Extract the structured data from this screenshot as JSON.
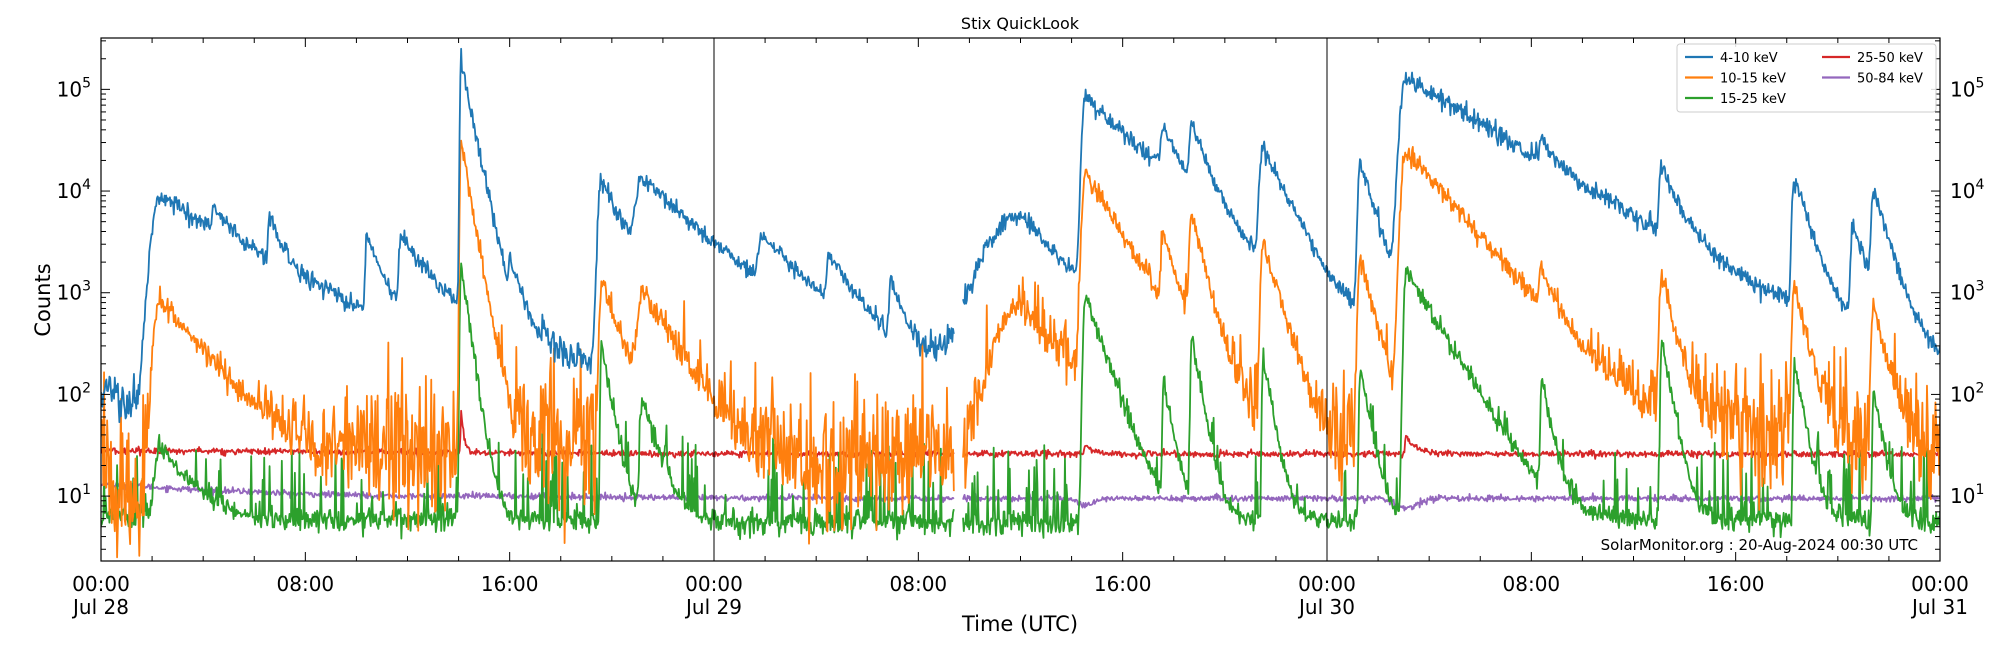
{
  "chart_data": {
    "type": "line",
    "title": "Stix QuickLook",
    "xlabel": "Time (UTC)",
    "ylabel": "Counts",
    "yscale": "log",
    "ylim": [
      2.3,
      320000
    ],
    "xlim_hours": [
      0,
      72
    ],
    "y_ticks": [
      {
        "base": "10",
        "exp": "1",
        "value": 10
      },
      {
        "base": "10",
        "exp": "2",
        "value": 100
      },
      {
        "base": "10",
        "exp": "3",
        "value": 1000
      },
      {
        "base": "10",
        "exp": "4",
        "value": 10000
      },
      {
        "base": "10",
        "exp": "5",
        "value": 100000
      }
    ],
    "x_ticks": [
      {
        "hour": 0,
        "time": "00:00",
        "date": "Jul 28"
      },
      {
        "hour": 8,
        "time": "08:00",
        "date": ""
      },
      {
        "hour": 16,
        "time": "16:00",
        "date": ""
      },
      {
        "hour": 24,
        "time": "00:00",
        "date": "Jul 29"
      },
      {
        "hour": 32,
        "time": "08:00",
        "date": ""
      },
      {
        "hour": 40,
        "time": "16:00",
        "date": ""
      },
      {
        "hour": 48,
        "time": "00:00",
        "date": "Jul 30"
      },
      {
        "hour": 56,
        "time": "08:00",
        "date": ""
      },
      {
        "hour": 64,
        "time": "16:00",
        "date": ""
      },
      {
        "hour": 72,
        "time": "00:00",
        "date": "Jul 31"
      }
    ],
    "day_boundaries_hours": [
      24,
      48
    ],
    "data_gap_hours": [
      33.4,
      33.75
    ],
    "legend_position": "top-right",
    "legend_columns": 2,
    "annotation": "SolarMonitor.org : 20-Aug-2024 00:30 UTC",
    "series": [
      {
        "name": "4-10 keV",
        "color": "#1f77b4",
        "background_points": [
          [
            0,
            130
          ],
          [
            1,
            75
          ],
          [
            2.3,
            85
          ],
          [
            4,
            110
          ],
          [
            5,
            80
          ],
          [
            7,
            90
          ],
          [
            9,
            75
          ],
          [
            11,
            110
          ],
          [
            13,
            170
          ],
          [
            15,
            120
          ],
          [
            16.5,
            230
          ],
          [
            18,
            180
          ],
          [
            20,
            200
          ],
          [
            22,
            280
          ],
          [
            24,
            240
          ],
          [
            26,
            160
          ],
          [
            28,
            120
          ],
          [
            30,
            140
          ],
          [
            32,
            180
          ],
          [
            34,
            130
          ],
          [
            36,
            190
          ],
          [
            38,
            220
          ],
          [
            40,
            300
          ],
          [
            42,
            260
          ],
          [
            44,
            240
          ],
          [
            46,
            220
          ],
          [
            48,
            150
          ],
          [
            49,
            250
          ],
          [
            51,
            200
          ],
          [
            53,
            180
          ],
          [
            55,
            140
          ],
          [
            57,
            150
          ],
          [
            59,
            170
          ],
          [
            61,
            150
          ],
          [
            63,
            160
          ],
          [
            65,
            210
          ],
          [
            67,
            180
          ],
          [
            69,
            150
          ],
          [
            71,
            130
          ],
          [
            72,
            130
          ]
        ],
        "base_noise_dex": 0.12,
        "flares": [
          [
            2.3,
            8500,
            0.35,
            3.0
          ],
          [
            4.4,
            3100,
            0.05,
            0.5
          ],
          [
            6.6,
            3700,
            0.06,
            0.4
          ],
          [
            10.4,
            3100,
            0.06,
            0.5
          ],
          [
            11.75,
            2800,
            0.1,
            1.2
          ],
          [
            14.1,
            180000,
            0.05,
            0.35
          ],
          [
            16,
            1100,
            0.05,
            0.5
          ],
          [
            19.6,
            13000,
            0.15,
            0.8
          ],
          [
            21.2,
            11500,
            0.3,
            2.0
          ],
          [
            25.9,
            2300,
            0.2,
            1.5
          ],
          [
            28.5,
            1600,
            0.1,
            0.8
          ],
          [
            30.9,
            1000,
            0.05,
            0.4
          ],
          [
            36,
            5500,
            1.5,
            1.5
          ],
          [
            38.55,
            85000,
            0.15,
            1.8
          ],
          [
            41.6,
            25000,
            0.15,
            0.6
          ],
          [
            42.7,
            35000,
            0.1,
            0.5
          ],
          [
            45.5,
            25000,
            0.15,
            0.8
          ],
          [
            49.3,
            19000,
            0.1,
            0.5
          ],
          [
            51.1,
            130000,
            0.25,
            2.8
          ],
          [
            56.4,
            13000,
            0.1,
            0.5
          ],
          [
            61.1,
            14000,
            0.1,
            0.6
          ],
          [
            66.3,
            13000,
            0.1,
            0.5
          ],
          [
            68.6,
            4200,
            0.1,
            0.5
          ],
          [
            69.4,
            9000,
            0.1,
            0.5
          ]
        ]
      },
      {
        "name": "10-15 keV",
        "color": "#ff7f0e",
        "background_points": [
          [
            0,
            25
          ],
          [
            0.5,
            12
          ],
          [
            3,
            20
          ],
          [
            5,
            15
          ],
          [
            8,
            18
          ],
          [
            11,
            25
          ],
          [
            14,
            30
          ],
          [
            17,
            35
          ],
          [
            20,
            40
          ],
          [
            22,
            45
          ],
          [
            24,
            30
          ],
          [
            26,
            22
          ],
          [
            28,
            18
          ],
          [
            30,
            25
          ],
          [
            33,
            30
          ],
          [
            34,
            40
          ],
          [
            36,
            80
          ],
          [
            38,
            150
          ],
          [
            40,
            130
          ],
          [
            42,
            90
          ],
          [
            44,
            60
          ],
          [
            46,
            45
          ],
          [
            48,
            28
          ],
          [
            50,
            40
          ],
          [
            52,
            60
          ],
          [
            54,
            45
          ],
          [
            56,
            30
          ],
          [
            58,
            40
          ],
          [
            60,
            35
          ],
          [
            62,
            40
          ],
          [
            64,
            50
          ],
          [
            66,
            45
          ],
          [
            68,
            40
          ],
          [
            70,
            35
          ],
          [
            72,
            30
          ]
        ],
        "base_noise_dex": 0.35,
        "flares": [
          [
            2.3,
            800,
            0.25,
            1.5
          ],
          [
            14.1,
            30000,
            0.05,
            0.3
          ],
          [
            19.6,
            1200,
            0.1,
            0.6
          ],
          [
            21.2,
            900,
            0.2,
            1.0
          ],
          [
            36,
            700,
            1.0,
            1.0
          ],
          [
            38.55,
            15000,
            0.15,
            1.0
          ],
          [
            41.6,
            3000,
            0.1,
            0.4
          ],
          [
            42.7,
            5500,
            0.1,
            0.4
          ],
          [
            45.5,
            3000,
            0.1,
            0.5
          ],
          [
            49.3,
            2200,
            0.1,
            0.4
          ],
          [
            51.1,
            25000,
            0.2,
            1.5
          ],
          [
            56.4,
            1000,
            0.1,
            0.4
          ],
          [
            61.1,
            1400,
            0.1,
            0.4
          ],
          [
            66.3,
            1100,
            0.1,
            0.4
          ],
          [
            69.4,
            700,
            0.1,
            0.4
          ]
        ]
      },
      {
        "name": "15-25 keV",
        "color": "#2ca02c",
        "background_points": [
          [
            0,
            6
          ],
          [
            3,
            6.5
          ],
          [
            6,
            5.8
          ],
          [
            10,
            5.8
          ],
          [
            14,
            6
          ],
          [
            18,
            5.8
          ],
          [
            22,
            5.8
          ],
          [
            24,
            5.5
          ],
          [
            30,
            5.5
          ],
          [
            36,
            5.5
          ],
          [
            40,
            5.5
          ],
          [
            44,
            5.8
          ],
          [
            48,
            5.5
          ],
          [
            52,
            5.8
          ],
          [
            56,
            5.8
          ],
          [
            60,
            5.8
          ],
          [
            64,
            5.8
          ],
          [
            68,
            5.8
          ],
          [
            72,
            5.5
          ]
        ],
        "base_noise_dex": 0.06,
        "spike_rate": 0.12,
        "flares": [
          [
            2.3,
            25,
            0.2,
            1.0
          ],
          [
            14.1,
            1800,
            0.05,
            0.25
          ],
          [
            19.6,
            300,
            0.05,
            0.3
          ],
          [
            21.2,
            80,
            0.1,
            0.5
          ],
          [
            38.55,
            900,
            0.1,
            0.6
          ],
          [
            41.6,
            120,
            0.05,
            0.3
          ],
          [
            42.7,
            350,
            0.05,
            0.3
          ],
          [
            45.5,
            220,
            0.05,
            0.3
          ],
          [
            49.3,
            180,
            0.05,
            0.3
          ],
          [
            51.1,
            1700,
            0.1,
            1.0
          ],
          [
            56.4,
            130,
            0.05,
            0.3
          ],
          [
            61.1,
            350,
            0.05,
            0.3
          ],
          [
            66.3,
            200,
            0.05,
            0.3
          ],
          [
            69.4,
            100,
            0.05,
            0.3
          ]
        ]
      },
      {
        "name": "25-50 keV",
        "color": "#d62728",
        "background_points": [
          [
            0,
            28
          ],
          [
            12,
            27
          ],
          [
            24,
            26
          ],
          [
            36,
            26
          ],
          [
            48,
            26
          ],
          [
            60,
            26
          ],
          [
            72,
            26
          ]
        ],
        "base_noise_dex": 0.015,
        "flares": [
          [
            14.1,
            40,
            0.03,
            0.1
          ],
          [
            38.55,
            6,
            0.05,
            0.3
          ],
          [
            51.1,
            12,
            0.05,
            0.4
          ]
        ]
      },
      {
        "name": "50-84 keV",
        "color": "#9467bd",
        "background_points": [
          [
            0,
            13
          ],
          [
            4,
            11.5
          ],
          [
            8,
            10.5
          ],
          [
            12,
            10
          ],
          [
            16,
            10
          ],
          [
            20,
            9.8
          ],
          [
            24,
            9.6
          ],
          [
            30,
            9.5
          ],
          [
            36,
            9.5
          ],
          [
            42,
            9.5
          ],
          [
            48,
            9.5
          ],
          [
            54,
            9.5
          ],
          [
            60,
            9.5
          ],
          [
            66,
            9.5
          ],
          [
            72,
            9.5
          ]
        ],
        "base_noise_dex": 0.015,
        "dips": [
          [
            38.55,
            0.85,
            0.4
          ],
          [
            51.1,
            0.8,
            0.6
          ]
        ]
      }
    ]
  }
}
